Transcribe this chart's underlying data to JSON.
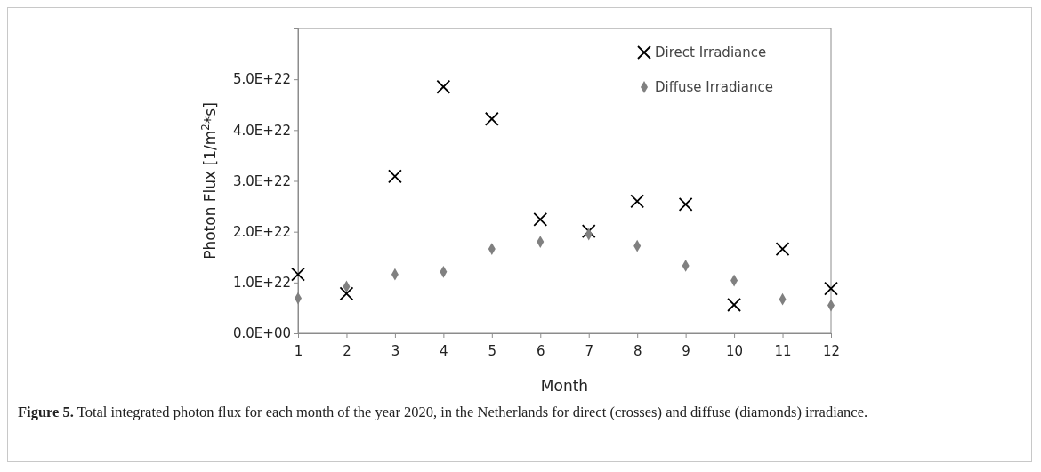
{
  "chart_data": {
    "type": "scatter",
    "xlabel": "Month",
    "ylabel": "Photon Flux [1/m$^{2}$*s]",
    "x": [
      1,
      2,
      3,
      4,
      5,
      6,
      7,
      8,
      9,
      10,
      11,
      12
    ],
    "series": [
      {
        "name": "Direct Irradiance",
        "color": "#000000",
        "marker": "cross",
        "values": [
          1.16e+22,
          7.8e+21,
          3.09e+22,
          4.85e+22,
          4.22e+22,
          2.24e+22,
          2.01e+22,
          2.6e+22,
          2.54e+22,
          5.6e+21,
          1.66e+22,
          8.8e+21
        ]
      },
      {
        "name": "Diffuse Irradiance",
        "color": "#808080",
        "marker": "diamond",
        "values": [
          6.9e+21,
          9.2e+21,
          1.16e+22,
          1.21e+22,
          1.66e+22,
          1.8e+22,
          1.95e+22,
          1.72e+22,
          1.33e+22,
          1.04e+22,
          6.7e+21,
          5.5e+21
        ]
      }
    ],
    "xlim": [
      1,
      12
    ],
    "xticks": [
      1,
      2,
      3,
      4,
      5,
      6,
      7,
      8,
      9,
      10,
      11,
      12
    ],
    "ylim": [
      0,
      6e+22
    ],
    "yticks": [
      {
        "value": 0,
        "label": "0.0E+00"
      },
      {
        "value": 1e+22,
        "label": "1.0E+22"
      },
      {
        "value": 2e+22,
        "label": "2.0E+22"
      },
      {
        "value": 3e+22,
        "label": "3.0E+22"
      },
      {
        "value": 4e+22,
        "label": "4.0E+22"
      },
      {
        "value": 5e+22,
        "label": "5.0E+22"
      }
    ],
    "grid": false,
    "legend": "top right",
    "annotations": [
      "Figure 5.",
      "Total integrated photon flux for each month of the year 2020, in the Netherlands for direct (crosses) and diffuse (diamonds) irradiance."
    ]
  }
}
